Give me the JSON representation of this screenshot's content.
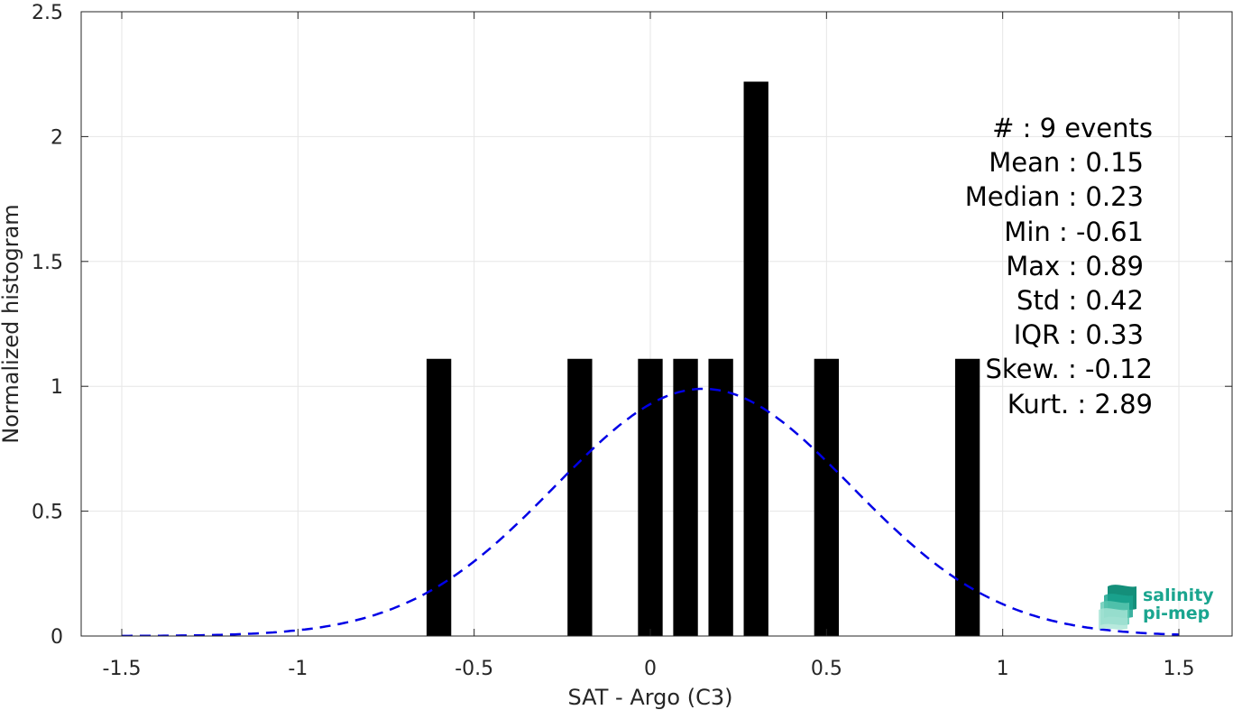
{
  "chart_data": {
    "type": "bar",
    "xlabel": "SAT - Argo (C3)",
    "ylabel": "Normalized histogram",
    "xlim": [
      -1.5,
      1.5
    ],
    "ylim": [
      0,
      2.5
    ],
    "xticks": [
      "-1.5",
      "-1",
      "-0.5",
      "0",
      "0.5",
      "1",
      "1.5"
    ],
    "xtick_values": [
      -1.5,
      -1,
      -0.5,
      0,
      0.5,
      1,
      1.5
    ],
    "yticks": [
      "0",
      "0.5",
      "1",
      "1.5",
      "2",
      "2.5"
    ],
    "ytick_values": [
      0,
      0.5,
      1,
      1.5,
      2,
      2.5
    ],
    "grid": true,
    "bin_width": 0.1,
    "bars": [
      {
        "x": -0.6,
        "value": 1.11
      },
      {
        "x": -0.2,
        "value": 1.11
      },
      {
        "x": 0.0,
        "value": 1.11
      },
      {
        "x": 0.1,
        "value": 1.11
      },
      {
        "x": 0.2,
        "value": 1.11
      },
      {
        "x": 0.3,
        "value": 2.22
      },
      {
        "x": 0.5,
        "value": 1.11
      },
      {
        "x": 0.9,
        "value": 1.11
      }
    ],
    "bar_color": "#000000",
    "fit_curve": {
      "style": "dashed",
      "color": "#0000e6",
      "mean": 0.15,
      "std": 0.42,
      "peak": 0.99
    },
    "annotations": [
      "#  : 9 events",
      "Mean : 0.15",
      "Median : 0.23",
      "Min : -0.61",
      "Max : 0.89",
      "Std : 0.42",
      "IQR : 0.33",
      "Skew. : -0.12",
      "Kurt. : 2.89"
    ]
  },
  "logo": {
    "line1": "salinity",
    "line2": "pi-mep",
    "color": "#1aa58f"
  }
}
